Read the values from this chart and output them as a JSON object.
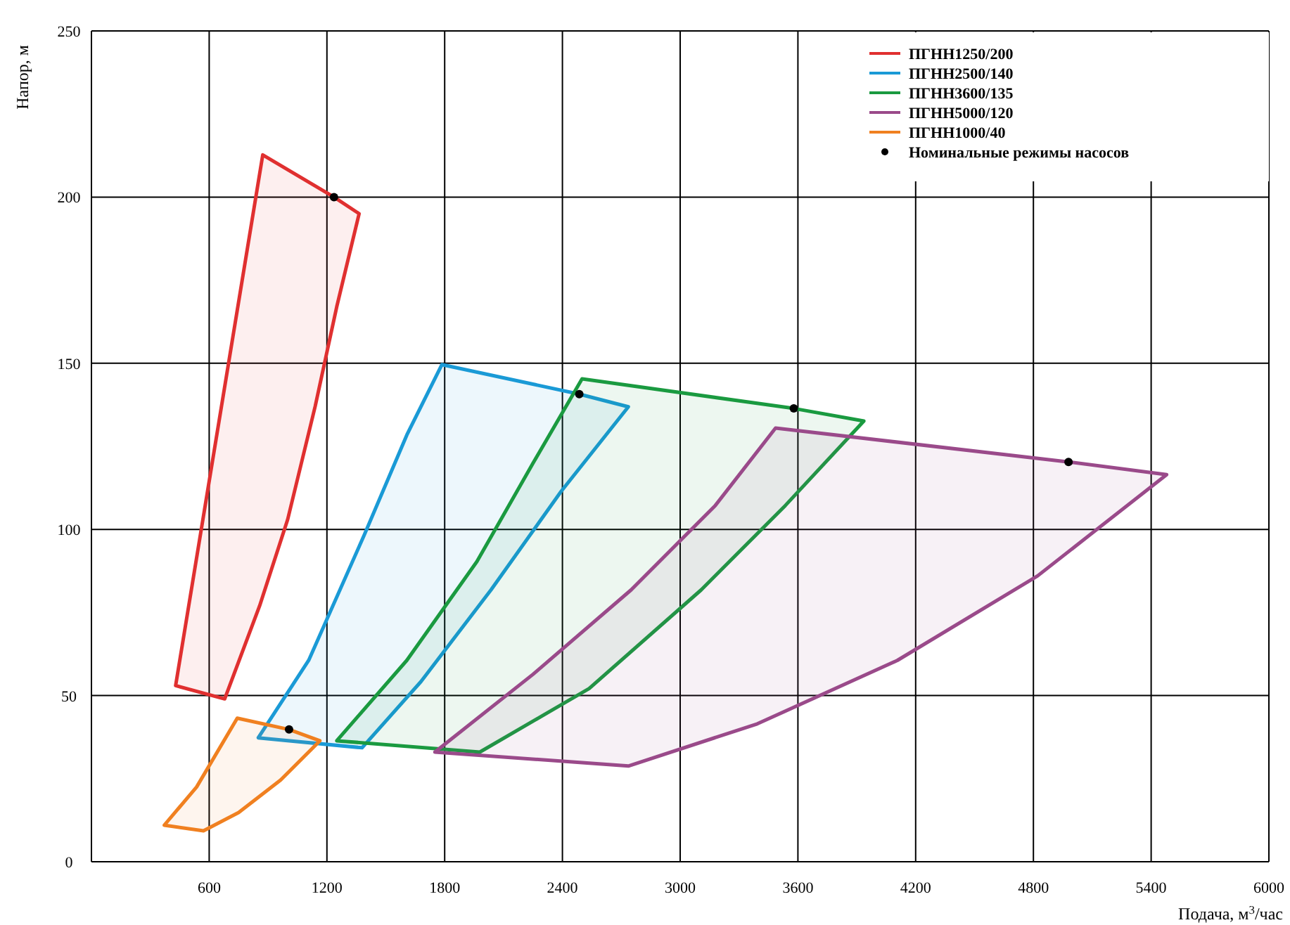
{
  "chart_data": {
    "type": "area",
    "xlabel": "Подача, м$^{3}$/час",
    "ylabel": "Напор, м",
    "xlim": [
      0,
      6000
    ],
    "ylim": [
      0,
      250
    ],
    "xticks": [
      600,
      1200,
      1800,
      2400,
      3000,
      3600,
      4200,
      4800,
      5400,
      6000
    ],
    "yticks": [
      0,
      50,
      100,
      150,
      200,
      250
    ],
    "grid": true,
    "legend": "top right",
    "series": [
      {
        "name": "ПГНН1250/200",
        "color": "#e03030",
        "x": [
          873,
          1236,
          1364,
          1250,
          1140,
          1000,
          857,
          679,
          429,
          873
        ],
        "values": [
          212.7,
          200,
          195,
          167,
          137,
          103,
          77,
          49,
          53,
          212.7
        ]
      },
      {
        "name": "ПГНН2500/140",
        "color": "#1a9ad6",
        "x": [
          1786,
          2486,
          2736,
          2393,
          2036,
          1679,
          1379,
          850,
          1107,
          1393,
          1607,
          1786
        ],
        "values": [
          149.6,
          140.7,
          136.9,
          111.4,
          81.8,
          54.2,
          34.3,
          37.3,
          60.6,
          98.7,
          128.4,
          149.6
        ]
      },
      {
        "name": "ПГНН3600/135",
        "color": "#1a9a40",
        "x": [
          2500,
          3579,
          3936,
          3536,
          3107,
          2536,
          1979,
          1250,
          1607,
          1964,
          2250,
          2500
        ],
        "values": [
          145.3,
          136.4,
          132.6,
          107.2,
          81.8,
          52.1,
          33,
          36.4,
          60.6,
          90.3,
          119.9,
          145.3
        ]
      },
      {
        "name": "ПГНН5000/120",
        "color": "#9a4a8a",
        "x": [
          3486,
          4979,
          5479,
          4821,
          4107,
          3393,
          2736,
          1750,
          2250,
          2750,
          3179,
          3486
        ],
        "values": [
          130.5,
          120.3,
          116.5,
          86,
          60.6,
          41.5,
          28.8,
          33,
          56.4,
          81.8,
          107.2,
          130.5
        ]
      },
      {
        "name": "ПГНН1000/40",
        "color": "#f08020",
        "x": [
          743,
          1007,
          1164,
          964,
          750,
          571,
          371,
          536,
          743
        ],
        "values": [
          43.2,
          39.8,
          36.4,
          24.6,
          14.8,
          9.3,
          11,
          22.5,
          43.2
        ]
      },
      {
        "name": "Номинальные режимы насосов",
        "type": "scatter",
        "marker": "circle",
        "color": "#000000",
        "x": [
          1236,
          2486,
          3579,
          4979,
          1007
        ],
        "values": [
          200,
          140.7,
          136.4,
          120.3,
          39.8
        ]
      }
    ]
  }
}
